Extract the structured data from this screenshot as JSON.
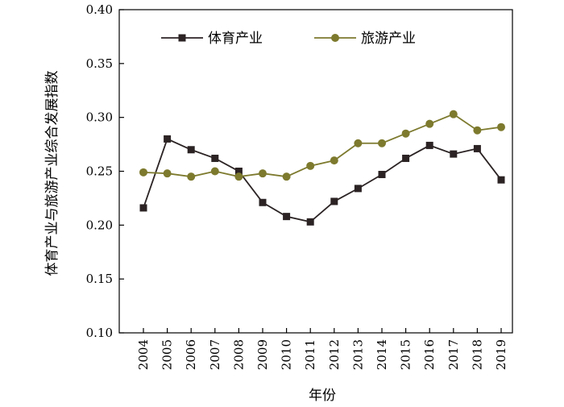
{
  "chart_data": {
    "type": "line",
    "title": "",
    "xlabel": "年份",
    "ylabel": "体育产业与旅游产业综合发展指数",
    "x": [
      "2004",
      "2005",
      "2006",
      "2007",
      "2008",
      "2009",
      "2010",
      "2011",
      "2012",
      "2013",
      "2014",
      "2015",
      "2016",
      "2017",
      "2018",
      "2019"
    ],
    "ylim": [
      0.1,
      0.4
    ],
    "yticks": [
      "0.10",
      "0.15",
      "0.20",
      "0.25",
      "0.30",
      "0.35",
      "0.40"
    ],
    "grid": false,
    "legend_position": "top",
    "series": [
      {
        "name": "体育产业",
        "color": "#2b2324",
        "marker": "square",
        "values": [
          0.216,
          0.28,
          0.27,
          0.262,
          0.25,
          0.221,
          0.208,
          0.203,
          0.222,
          0.234,
          0.247,
          0.262,
          0.274,
          0.266,
          0.271,
          0.242
        ]
      },
      {
        "name": "旅游产业",
        "color": "#7d7a2e",
        "marker": "circle",
        "values": [
          0.249,
          0.248,
          0.245,
          0.25,
          0.245,
          0.248,
          0.245,
          0.255,
          0.26,
          0.276,
          0.276,
          0.285,
          0.294,
          0.303,
          0.288,
          0.291
        ]
      }
    ]
  }
}
